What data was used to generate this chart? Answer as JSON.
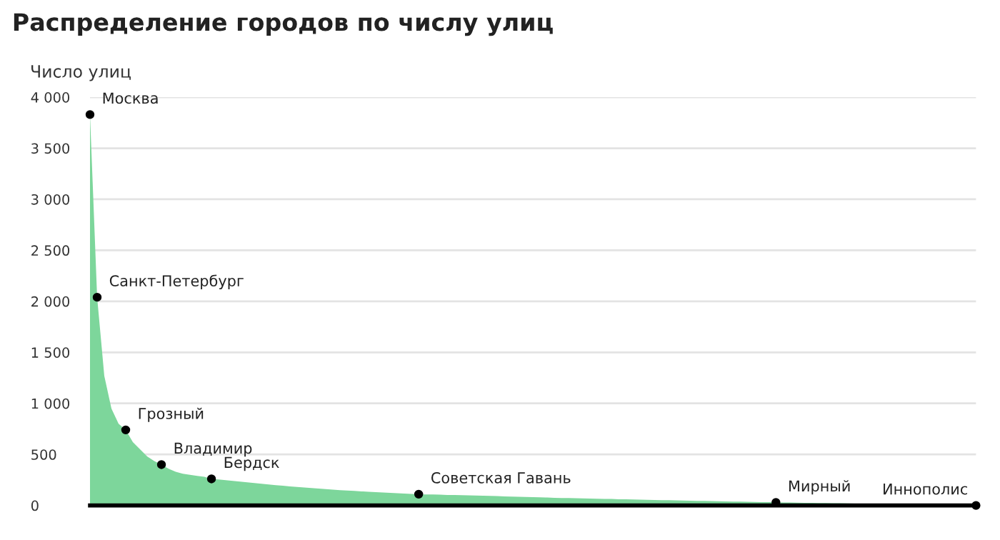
{
  "chart_data": {
    "type": "area",
    "title": "Распределение городов по числу улиц",
    "ylabel": "Число улиц",
    "categories": [
      null,
      null,
      null,
      null,
      null,
      null,
      null,
      null,
      null,
      null,
      null,
      null,
      null,
      null,
      null,
      null,
      null,
      null,
      null,
      null,
      null,
      null,
      null,
      null,
      null,
      null,
      null,
      null,
      null,
      null,
      null,
      null,
      null,
      null,
      null,
      null,
      null,
      null,
      null,
      null,
      null,
      null,
      null,
      null,
      null,
      null,
      null,
      null,
      null,
      null,
      null,
      null,
      null,
      null,
      null,
      null,
      null,
      null,
      null,
      null,
      null,
      null,
      null,
      null,
      null,
      null,
      null,
      null,
      null,
      null,
      null,
      null,
      null,
      null,
      null,
      null,
      null,
      null,
      null,
      null,
      null,
      null,
      null,
      null,
      null,
      null,
      null,
      null,
      null,
      null,
      null,
      null,
      null,
      null,
      null,
      null,
      null,
      null,
      null,
      null,
      null,
      null,
      null,
      null,
      null,
      null,
      null,
      null,
      null,
      null,
      null,
      null,
      null,
      null,
      null,
      null,
      null,
      null,
      null,
      null,
      null,
      null,
      null,
      null,
      null
    ],
    "series": [
      {
        "color": "#7dd69b",
        "values": [
          3830,
          2040,
          1270,
          950,
          800,
          740,
          620,
          550,
          480,
          435,
          400,
          360,
          330,
          310,
          300,
          290,
          280,
          260,
          255,
          248,
          240,
          233,
          226,
          219,
          212,
          205,
          199,
          193,
          187,
          181,
          175,
          170,
          165,
          160,
          155,
          150,
          146,
          142,
          138,
          134,
          130,
          127,
          123,
          120,
          116,
          113,
          110,
          108,
          107,
          105,
          103,
          102,
          100,
          99,
          97,
          95,
          93,
          91,
          89,
          87,
          85,
          83,
          81,
          79,
          77,
          75,
          73,
          72,
          70,
          69,
          67,
          66,
          64,
          63,
          61,
          60,
          58,
          57,
          55,
          54,
          52,
          51,
          49,
          48,
          46,
          45,
          44,
          42,
          41,
          40,
          38,
          37,
          36,
          34,
          33,
          32,
          30,
          29,
          28,
          27,
          26,
          25,
          24,
          23,
          22,
          21,
          20,
          19,
          18,
          17,
          16,
          15,
          14,
          13,
          12,
          11,
          10,
          9,
          8,
          7,
          6,
          5,
          4,
          2,
          0
        ]
      },
      {
        "type": "scatter",
        "color": "#000000",
        "values": [
          3830,
          2040,
          null,
          null,
          null,
          740,
          null,
          null,
          null,
          null,
          400,
          null,
          null,
          null,
          null,
          null,
          null,
          260,
          null,
          null,
          null,
          null,
          null,
          null,
          null,
          null,
          null,
          null,
          null,
          null,
          null,
          null,
          null,
          null,
          null,
          null,
          null,
          null,
          null,
          null,
          null,
          null,
          null,
          null,
          null,
          null,
          110,
          null,
          null,
          null,
          null,
          null,
          null,
          null,
          null,
          null,
          null,
          null,
          null,
          null,
          null,
          null,
          null,
          null,
          null,
          null,
          null,
          null,
          null,
          null,
          null,
          null,
          null,
          null,
          null,
          null,
          null,
          null,
          null,
          null,
          null,
          null,
          null,
          null,
          null,
          null,
          null,
          null,
          null,
          null,
          null,
          null,
          null,
          null,
          null,
          null,
          30,
          null,
          null,
          null,
          null,
          null,
          null,
          null,
          null,
          null,
          null,
          null,
          null,
          null,
          null,
          null,
          null,
          null,
          null,
          null,
          null,
          null,
          null,
          null,
          null,
          null,
          null,
          null,
          0
        ],
        "value_labels": [
          "Москва",
          "Санкт-Петербург",
          null,
          null,
          null,
          "Грозный",
          null,
          null,
          null,
          null,
          "Владимир",
          null,
          null,
          null,
          null,
          null,
          null,
          "Бердск",
          null,
          null,
          null,
          null,
          null,
          null,
          null,
          null,
          null,
          null,
          null,
          null,
          null,
          null,
          null,
          null,
          null,
          null,
          null,
          null,
          null,
          null,
          null,
          null,
          null,
          null,
          null,
          null,
          "Советская Гавань",
          null,
          null,
          null,
          null,
          null,
          null,
          null,
          null,
          null,
          null,
          null,
          null,
          null,
          null,
          null,
          null,
          null,
          null,
          null,
          null,
          null,
          null,
          null,
          null,
          null,
          null,
          null,
          null,
          null,
          null,
          null,
          null,
          null,
          null,
          null,
          null,
          null,
          null,
          null,
          null,
          null,
          null,
          null,
          null,
          null,
          null,
          null,
          null,
          null,
          "Мирный",
          null,
          null,
          null,
          null,
          null,
          null,
          null,
          null,
          null,
          null,
          null,
          null,
          null,
          null,
          null,
          null,
          null,
          null,
          null,
          null,
          null,
          null,
          null,
          null,
          null,
          null,
          null,
          "Иннополис"
        ]
      }
    ],
    "ylim": [
      0,
      4000
    ],
    "yticks": [
      0,
      500,
      {
        "value": 1000,
        "label": "1 000"
      },
      {
        "value": 1500,
        "label": "1 500"
      },
      {
        "value": 2000,
        "label": "2 000"
      },
      {
        "value": 2500,
        "label": "2 500"
      },
      {
        "value": 3000,
        "label": "3 000"
      },
      {
        "value": 3500,
        "label": "3 500"
      },
      {
        "value": 4000,
        "label": "4 000"
      }
    ],
    "grid": "y",
    "tick_labels": "y",
    "legend": false
  }
}
